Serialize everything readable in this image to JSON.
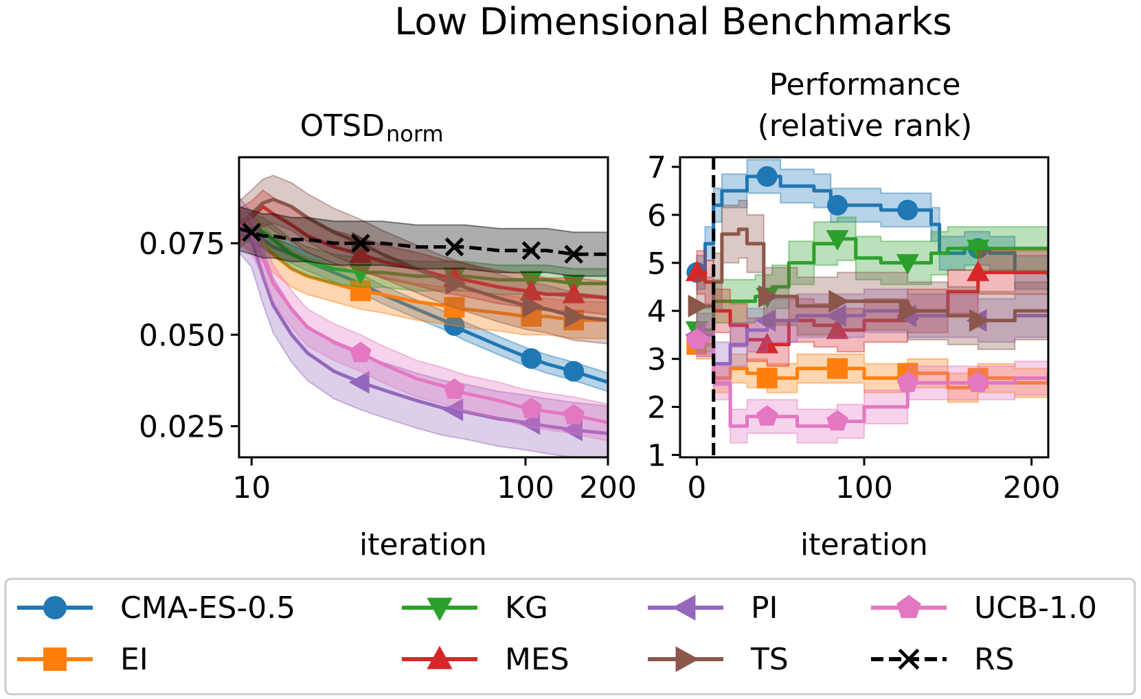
{
  "title": "Low Dimensional Benchmarks",
  "chart_data": [
    {
      "type": "line",
      "title_main": "OTSD",
      "title_subscript": "norm",
      "xlabel": "iteration",
      "ylabel": "",
      "xscale": "log",
      "xlim": [
        9,
        200
      ],
      "ylim": [
        0.0165,
        0.0985
      ],
      "xticks": [
        10,
        100,
        200
      ],
      "xtick_labels": [
        "10",
        "100",
        "200"
      ],
      "yticks": [
        0.025,
        0.05,
        0.075
      ],
      "ytick_labels": [
        "0.025",
        "0.050",
        "0.075"
      ],
      "x": [
        9,
        10,
        11,
        12,
        14,
        16,
        20,
        25,
        30,
        40,
        50,
        60,
        80,
        100,
        120,
        150,
        200
      ],
      "series": [
        {
          "name": "CMA-ES-0.5",
          "color": "#1f77b4",
          "marker": "circle",
          "dashed": false,
          "band": 0.0025,
          "markers_x": [
            55,
            105,
            150
          ],
          "values": [
            0.08,
            0.078,
            0.076,
            0.074,
            0.072,
            0.07,
            0.067,
            0.064,
            0.061,
            0.057,
            0.054,
            0.051,
            0.047,
            0.044,
            0.042,
            0.04,
            0.037
          ]
        },
        {
          "name": "EI",
          "color": "#ff7f0e",
          "marker": "square",
          "dashed": false,
          "band": 0.005,
          "markers_x": [
            25,
            55,
            105,
            150
          ],
          "values": [
            0.08,
            0.078,
            0.075,
            0.072,
            0.068,
            0.066,
            0.064,
            0.062,
            0.061,
            0.059,
            0.058,
            0.057,
            0.056,
            0.055,
            0.055,
            0.054,
            0.054
          ]
        },
        {
          "name": "KG",
          "color": "#2ca02c",
          "marker": "triangle-down",
          "dashed": false,
          "band": 0.004,
          "markers_x": [
            25,
            55,
            105,
            150
          ],
          "values": [
            0.08,
            0.079,
            0.078,
            0.076,
            0.072,
            0.07,
            0.068,
            0.067,
            0.067,
            0.066,
            0.066,
            0.066,
            0.065,
            0.065,
            0.065,
            0.064,
            0.064
          ]
        },
        {
          "name": "MES",
          "color": "#d62728",
          "marker": "triangle-up",
          "dashed": false,
          "band": 0.0045,
          "markers_x": [
            25,
            55,
            105,
            150
          ],
          "values": [
            0.08,
            0.082,
            0.085,
            0.083,
            0.08,
            0.077,
            0.074,
            0.072,
            0.07,
            0.068,
            0.066,
            0.065,
            0.063,
            0.062,
            0.061,
            0.061,
            0.06
          ]
        },
        {
          "name": "PI",
          "color": "#9467bd",
          "marker": "triangle-left",
          "dashed": false,
          "band": 0.0075,
          "markers_x": [
            25,
            55,
            105,
            150
          ],
          "values": [
            0.08,
            0.076,
            0.066,
            0.058,
            0.05,
            0.045,
            0.04,
            0.037,
            0.035,
            0.032,
            0.03,
            0.029,
            0.027,
            0.026,
            0.025,
            0.024,
            0.023
          ]
        },
        {
          "name": "TS",
          "color": "#8c564b",
          "marker": "triangle-right",
          "dashed": false,
          "band": 0.0065,
          "markers_x": [
            25,
            55,
            105,
            150
          ],
          "values": [
            0.08,
            0.083,
            0.086,
            0.087,
            0.085,
            0.082,
            0.078,
            0.075,
            0.072,
            0.068,
            0.065,
            0.063,
            0.06,
            0.058,
            0.057,
            0.055,
            0.054
          ]
        },
        {
          "name": "UCB-1.0",
          "color": "#e377c2",
          "marker": "pentagon",
          "dashed": false,
          "band": 0.005,
          "markers_x": [
            25,
            55,
            105,
            150
          ],
          "values": [
            0.08,
            0.077,
            0.071,
            0.064,
            0.057,
            0.052,
            0.048,
            0.045,
            0.042,
            0.038,
            0.036,
            0.034,
            0.032,
            0.03,
            0.029,
            0.028,
            0.026
          ]
        },
        {
          "name": "RS",
          "color": "#000000",
          "marker": "x",
          "dashed": true,
          "band": 0.006,
          "markers_x": [
            10,
            25,
            55,
            105,
            150
          ],
          "values": [
            0.079,
            0.078,
            0.077,
            0.077,
            0.076,
            0.076,
            0.075,
            0.075,
            0.075,
            0.074,
            0.074,
            0.074,
            0.073,
            0.073,
            0.073,
            0.072,
            0.072
          ]
        }
      ]
    },
    {
      "type": "line",
      "title_line1": "Performance",
      "title_line2": "(relative rank)",
      "xlabel": "iteration",
      "ylabel": "",
      "xscale": "linear",
      "xlim": [
        -10,
        210
      ],
      "ylim": [
        0.95,
        7.2
      ],
      "xticks": [
        0,
        100,
        200
      ],
      "xtick_labels": [
        "0",
        "100",
        "200"
      ],
      "yticks": [
        1,
        2,
        3,
        4,
        5,
        6,
        7
      ],
      "ytick_labels": [
        "1",
        "2",
        "3",
        "4",
        "5",
        "6",
        "7"
      ],
      "vline_x": 10,
      "series": [
        {
          "name": "CMA-ES-0.5",
          "color": "#1f77b4",
          "marker": "circle",
          "dashed": false,
          "band": 0.35,
          "markers_x": [
            0,
            42,
            84,
            126,
            168
          ],
          "points": [
            [
              0,
              4.8
            ],
            [
              5,
              5.4
            ],
            [
              10,
              6.2
            ],
            [
              15,
              6.5
            ],
            [
              30,
              6.8
            ],
            [
              40,
              6.8
            ],
            [
              50,
              6.6
            ],
            [
              70,
              6.5
            ],
            [
              80,
              6.2
            ],
            [
              100,
              6.2
            ],
            [
              110,
              6.1
            ],
            [
              140,
              5.8
            ],
            [
              145,
              5.2
            ],
            [
              160,
              5.3
            ],
            [
              175,
              5.2
            ],
            [
              190,
              4.8
            ],
            [
              210,
              4.7
            ]
          ]
        },
        {
          "name": "EI",
          "color": "#ff7f0e",
          "marker": "square",
          "dashed": false,
          "band": 0.3,
          "markers_x": [
            0,
            42,
            84,
            126,
            168
          ],
          "points": [
            [
              0,
              3.3
            ],
            [
              10,
              2.6
            ],
            [
              20,
              2.8
            ],
            [
              30,
              2.7
            ],
            [
              42,
              2.6
            ],
            [
              60,
              2.8
            ],
            [
              84,
              2.8
            ],
            [
              100,
              2.6
            ],
            [
              126,
              2.7
            ],
            [
              150,
              2.4
            ],
            [
              168,
              2.6
            ],
            [
              190,
              2.5
            ],
            [
              210,
              2.6
            ]
          ]
        },
        {
          "name": "KG",
          "color": "#2ca02c",
          "marker": "triangle-down",
          "dashed": false,
          "band": 0.45,
          "markers_x": [
            0,
            42,
            84,
            126,
            168
          ],
          "points": [
            [
              0,
              3.6
            ],
            [
              10,
              4.2
            ],
            [
              20,
              4.2
            ],
            [
              35,
              4.3
            ],
            [
              45,
              4.5
            ],
            [
              55,
              5.0
            ],
            [
              70,
              5.4
            ],
            [
              84,
              5.5
            ],
            [
              95,
              5.1
            ],
            [
              110,
              5.0
            ],
            [
              126,
              5.0
            ],
            [
              140,
              5.2
            ],
            [
              150,
              5.3
            ],
            [
              168,
              5.3
            ],
            [
              190,
              5.3
            ],
            [
              210,
              5.3
            ]
          ]
        },
        {
          "name": "MES",
          "color": "#d62728",
          "marker": "triangle-up",
          "dashed": false,
          "band": 0.45,
          "markers_x": [
            0,
            42,
            84,
            126,
            168
          ],
          "points": [
            [
              0,
              4.8
            ],
            [
              5,
              4.6
            ],
            [
              10,
              4.0
            ],
            [
              20,
              3.7
            ],
            [
              30,
              3.4
            ],
            [
              42,
              3.3
            ],
            [
              55,
              3.8
            ],
            [
              70,
              3.7
            ],
            [
              84,
              3.6
            ],
            [
              100,
              3.8
            ],
            [
              126,
              4.0
            ],
            [
              150,
              4.4
            ],
            [
              168,
              4.8
            ],
            [
              190,
              4.8
            ],
            [
              210,
              4.8
            ]
          ]
        },
        {
          "name": "PI",
          "color": "#9467bd",
          "marker": "triangle-left",
          "dashed": false,
          "band": 0.45,
          "markers_x": [
            0,
            42,
            84,
            126,
            168
          ],
          "points": [
            [
              0,
              3.5
            ],
            [
              10,
              2.9
            ],
            [
              20,
              3.3
            ],
            [
              30,
              3.6
            ],
            [
              42,
              3.8
            ],
            [
              60,
              3.9
            ],
            [
              84,
              3.9
            ],
            [
              100,
              4.0
            ],
            [
              126,
              3.9
            ],
            [
              150,
              3.9
            ],
            [
              168,
              3.8
            ],
            [
              190,
              3.9
            ],
            [
              210,
              3.9
            ]
          ]
        },
        {
          "name": "TS",
          "color": "#8c564b",
          "marker": "triangle-right",
          "dashed": false,
          "band": 0.6,
          "markers_x": [
            0,
            42,
            84,
            126,
            168
          ],
          "points": [
            [
              0,
              4.1
            ],
            [
              10,
              4.6
            ],
            [
              15,
              5.6
            ],
            [
              25,
              5.7
            ],
            [
              30,
              5.4
            ],
            [
              40,
              4.3
            ],
            [
              60,
              4.1
            ],
            [
              84,
              4.2
            ],
            [
              100,
              4.2
            ],
            [
              126,
              4.0
            ],
            [
              150,
              3.9
            ],
            [
              168,
              3.8
            ],
            [
              190,
              4.0
            ],
            [
              210,
              4.0
            ]
          ]
        },
        {
          "name": "UCB-1.0",
          "color": "#e377c2",
          "marker": "pentagon",
          "dashed": false,
          "band": 0.35,
          "markers_x": [
            0,
            42,
            84,
            126,
            168
          ],
          "points": [
            [
              0,
              3.4
            ],
            [
              10,
              2.5
            ],
            [
              20,
              1.6
            ],
            [
              30,
              1.8
            ],
            [
              42,
              1.8
            ],
            [
              60,
              1.6
            ],
            [
              84,
              1.7
            ],
            [
              100,
              2.0
            ],
            [
              126,
              2.5
            ],
            [
              150,
              2.5
            ],
            [
              168,
              2.5
            ],
            [
              190,
              2.6
            ],
            [
              210,
              2.7
            ]
          ]
        }
      ]
    }
  ],
  "legend": {
    "columns": 4,
    "items": [
      {
        "label": "CMA-ES-0.5",
        "color": "#1f77b4",
        "marker": "circle",
        "dashed": false
      },
      {
        "label": "EI",
        "color": "#ff7f0e",
        "marker": "square",
        "dashed": false
      },
      {
        "label": "KG",
        "color": "#2ca02c",
        "marker": "triangle-down",
        "dashed": false
      },
      {
        "label": "MES",
        "color": "#d62728",
        "marker": "triangle-up",
        "dashed": false
      },
      {
        "label": "PI",
        "color": "#9467bd",
        "marker": "triangle-left",
        "dashed": false
      },
      {
        "label": "TS",
        "color": "#8c564b",
        "marker": "triangle-right",
        "dashed": false
      },
      {
        "label": "UCB-1.0",
        "color": "#e377c2",
        "marker": "pentagon",
        "dashed": false
      },
      {
        "label": "RS",
        "color": "#000000",
        "marker": "x",
        "dashed": true
      }
    ]
  }
}
